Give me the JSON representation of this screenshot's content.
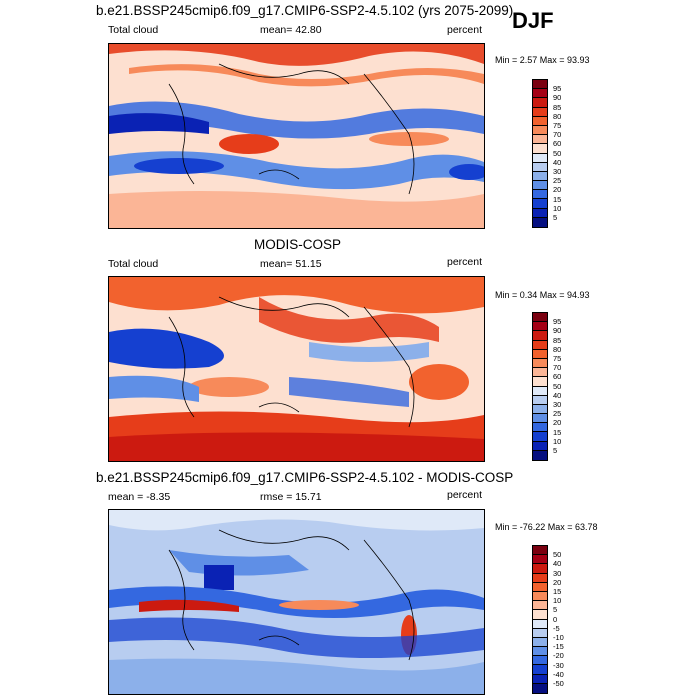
{
  "season": "DJF",
  "panels": [
    {
      "id": "model",
      "title": "b.e21.BSSP245cmip6.f09_g17.CMIP6-SSP2-4.5.102 (yrs 2075-2099)",
      "left_label": "Total cloud",
      "center_label": "mean=  42.80",
      "right_label": "percent",
      "minmax": "Min =   2.57 Max =  93.93",
      "colorbar": {
        "labels": [
          "95",
          "90",
          "85",
          "80",
          "75",
          "70",
          "60",
          "50",
          "40",
          "30",
          "25",
          "20",
          "15",
          "10",
          "5"
        ],
        "colors": [
          "#7a0010",
          "#a50015",
          "#cc1a10",
          "#e63d1a",
          "#f2622e",
          "#f78a5a",
          "#fbb596",
          "#fde0d0",
          "#dfe9f8",
          "#b8cdf0",
          "#8cb0ea",
          "#5f8fe6",
          "#3468e0",
          "#1540d0",
          "#0a22b4",
          "#050f80"
        ]
      },
      "chart_data": {
        "type": "heatmap",
        "variable": "Total cloud",
        "units": "percent",
        "mean": 42.8,
        "min": 2.57,
        "max": 93.93,
        "levels": [
          5,
          10,
          15,
          20,
          25,
          30,
          40,
          50,
          60,
          70,
          75,
          80,
          85,
          90,
          95
        ]
      }
    },
    {
      "id": "obs",
      "title": "MODIS-COSP",
      "left_label": "Total cloud",
      "center_label": "mean=  51.15",
      "right_label": "percent",
      "minmax": "Min =   0.34 Max =  94.93",
      "colorbar": {
        "labels": [
          "95",
          "90",
          "85",
          "80",
          "75",
          "70",
          "60",
          "50",
          "40",
          "30",
          "25",
          "20",
          "15",
          "10",
          "5"
        ],
        "colors": [
          "#7a0010",
          "#a50015",
          "#cc1a10",
          "#e63d1a",
          "#f2622e",
          "#f78a5a",
          "#fbb596",
          "#fde0d0",
          "#dfe9f8",
          "#b8cdf0",
          "#8cb0ea",
          "#5f8fe6",
          "#3468e0",
          "#1540d0",
          "#0a22b4",
          "#050f80"
        ]
      },
      "chart_data": {
        "type": "heatmap",
        "variable": "Total cloud",
        "units": "percent",
        "mean": 51.15,
        "min": 0.34,
        "max": 94.93,
        "levels": [
          5,
          10,
          15,
          20,
          25,
          30,
          40,
          50,
          60,
          70,
          75,
          80,
          85,
          90,
          95
        ]
      }
    },
    {
      "id": "diff",
      "title": "b.e21.BSSP245cmip6.f09_g17.CMIP6-SSP2-4.5.102 - MODIS-COSP",
      "left_label": "mean =  -8.35",
      "center_label": "rmse =  15.71",
      "right_label": "percent",
      "minmax": "Min = -76.22 Max =  63.78",
      "colorbar": {
        "labels": [
          "50",
          "40",
          "30",
          "20",
          "15",
          "10",
          "5",
          "0",
          "-5",
          "-10",
          "-15",
          "-20",
          "-30",
          "-40",
          "-50"
        ],
        "colors": [
          "#7a0010",
          "#a50015",
          "#cc1a10",
          "#e63d1a",
          "#f2622e",
          "#f78a5a",
          "#fbb596",
          "#fde0d0",
          "#dfe9f8",
          "#b8cdf0",
          "#8cb0ea",
          "#5f8fe6",
          "#3468e0",
          "#1540d0",
          "#0a22b4",
          "#050f80"
        ]
      },
      "chart_data": {
        "type": "heatmap",
        "variable": "Total cloud difference",
        "units": "percent",
        "mean": -8.35,
        "rmse": 15.71,
        "min": -76.22,
        "max": 63.78,
        "levels": [
          -50,
          -40,
          -30,
          -20,
          -15,
          -10,
          -5,
          0,
          5,
          10,
          15,
          20,
          30,
          40,
          50
        ]
      }
    }
  ]
}
